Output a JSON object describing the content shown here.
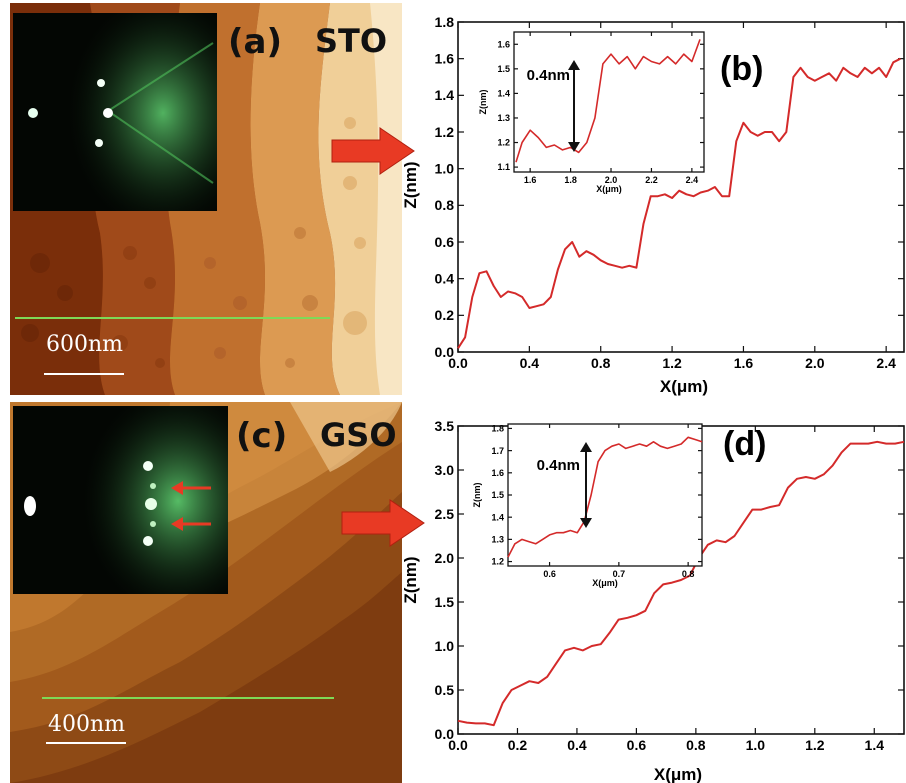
{
  "panels": {
    "a": {
      "label": "(a)",
      "material": "STO",
      "scalebar": "600nm"
    },
    "b": {
      "label": "(b)"
    },
    "c": {
      "label": "(c)",
      "material": "GSO",
      "scalebar": "400nm"
    },
    "d": {
      "label": "(d)"
    }
  },
  "colors": {
    "curve": "#d42a2a",
    "arrow": "#e83a24",
    "profile_line": "#7ed957",
    "rheed_green": "#3fb04a"
  },
  "chart_data": [
    {
      "id": "b-main",
      "type": "line",
      "xlabel": "X(μm)",
      "ylabel": "Z(nm)",
      "xlim": [
        0.0,
        2.5
      ],
      "ylim": [
        0.0,
        1.8
      ],
      "xticks": [
        "0.0",
        "0.4",
        "0.8",
        "1.2",
        "1.6",
        "2.0",
        "2.4"
      ],
      "yticks": [
        "0.0",
        "0.2",
        "0.4",
        "0.6",
        "0.8",
        "1.0",
        "1.2",
        "1.4",
        "1.6",
        "1.8"
      ],
      "series": [
        {
          "x": [
            0.0,
            0.04,
            0.08,
            0.12,
            0.16,
            0.2,
            0.24,
            0.28,
            0.32,
            0.36,
            0.4,
            0.44,
            0.48,
            0.52,
            0.56,
            0.6,
            0.64,
            0.68,
            0.72,
            0.76,
            0.8,
            0.84,
            0.88,
            0.92,
            0.96,
            1.0,
            1.04,
            1.08,
            1.12,
            1.16,
            1.2,
            1.24,
            1.28,
            1.32,
            1.36,
            1.4,
            1.44,
            1.48,
            1.52,
            1.56,
            1.6,
            1.64,
            1.68,
            1.72,
            1.76,
            1.8,
            1.84,
            1.88,
            1.92,
            1.96,
            2.0,
            2.04,
            2.08,
            2.12,
            2.16,
            2.2,
            2.24,
            2.28,
            2.32,
            2.36,
            2.4,
            2.44,
            2.48
          ],
          "y": [
            0.02,
            0.08,
            0.3,
            0.43,
            0.44,
            0.36,
            0.3,
            0.33,
            0.32,
            0.3,
            0.24,
            0.25,
            0.26,
            0.3,
            0.45,
            0.56,
            0.6,
            0.52,
            0.55,
            0.53,
            0.5,
            0.48,
            0.47,
            0.46,
            0.47,
            0.46,
            0.7,
            0.85,
            0.85,
            0.86,
            0.84,
            0.88,
            0.86,
            0.85,
            0.87,
            0.88,
            0.9,
            0.85,
            0.85,
            1.15,
            1.25,
            1.2,
            1.18,
            1.2,
            1.2,
            1.15,
            1.2,
            1.5,
            1.55,
            1.5,
            1.48,
            1.5,
            1.52,
            1.48,
            1.55,
            1.52,
            1.5,
            1.55,
            1.52,
            1.55,
            1.5,
            1.58,
            1.6
          ]
        }
      ]
    },
    {
      "id": "b-inset",
      "type": "line",
      "xlabel": "X(μm)",
      "ylabel": "Z(nm)",
      "xlim": [
        1.52,
        2.46
      ],
      "ylim": [
        1.08,
        1.65
      ],
      "xticks": [
        "1.6",
        "1.8",
        "2.0",
        "2.2",
        "2.4"
      ],
      "yticks": [
        "1.1",
        "1.2",
        "1.3",
        "1.4",
        "1.5",
        "1.6"
      ],
      "annotation": "0.4nm",
      "series": [
        {
          "x": [
            1.53,
            1.56,
            1.6,
            1.64,
            1.68,
            1.72,
            1.76,
            1.8,
            1.84,
            1.88,
            1.92,
            1.96,
            2.0,
            2.04,
            2.08,
            2.12,
            2.16,
            2.2,
            2.24,
            2.28,
            2.32,
            2.36,
            2.4,
            2.44
          ],
          "y": [
            1.12,
            1.2,
            1.25,
            1.22,
            1.18,
            1.19,
            1.17,
            1.18,
            1.16,
            1.2,
            1.3,
            1.52,
            1.56,
            1.52,
            1.55,
            1.5,
            1.55,
            1.53,
            1.52,
            1.55,
            1.52,
            1.56,
            1.53,
            1.62
          ]
        }
      ]
    },
    {
      "id": "d-main",
      "type": "line",
      "xlabel": "X(μm)",
      "ylabel": "Z(nm)",
      "xlim": [
        0.0,
        1.5
      ],
      "ylim": [
        0.0,
        3.5
      ],
      "xticks": [
        "0.0",
        "0.2",
        "0.4",
        "0.6",
        "0.8",
        "1.0",
        "1.2",
        "1.4"
      ],
      "yticks": [
        "0.0",
        "0.5",
        "1.0",
        "1.5",
        "2.0",
        "2.5",
        "3.0",
        "3.5"
      ],
      "series": [
        {
          "x": [
            0.0,
            0.03,
            0.06,
            0.09,
            0.12,
            0.15,
            0.18,
            0.21,
            0.24,
            0.27,
            0.3,
            0.33,
            0.36,
            0.39,
            0.42,
            0.45,
            0.48,
            0.51,
            0.54,
            0.57,
            0.6,
            0.63,
            0.66,
            0.69,
            0.72,
            0.75,
            0.78,
            0.81,
            0.84,
            0.87,
            0.9,
            0.93,
            0.96,
            0.99,
            1.02,
            1.05,
            1.08,
            1.11,
            1.14,
            1.17,
            1.2,
            1.23,
            1.26,
            1.29,
            1.32,
            1.35,
            1.38,
            1.41,
            1.44,
            1.47,
            1.5
          ],
          "y": [
            0.15,
            0.13,
            0.12,
            0.12,
            0.1,
            0.35,
            0.5,
            0.55,
            0.6,
            0.58,
            0.65,
            0.8,
            0.95,
            0.98,
            0.95,
            1.0,
            1.02,
            1.15,
            1.3,
            1.32,
            1.35,
            1.4,
            1.6,
            1.7,
            1.72,
            1.75,
            1.8,
            2.0,
            2.15,
            2.2,
            2.18,
            2.25,
            2.4,
            2.55,
            2.55,
            2.58,
            2.6,
            2.8,
            2.9,
            2.92,
            2.9,
            2.95,
            3.05,
            3.2,
            3.3,
            3.3,
            3.3,
            3.32,
            3.3,
            3.3,
            3.32
          ]
        }
      ]
    },
    {
      "id": "d-inset",
      "type": "line",
      "xlabel": "X(μm)",
      "ylabel": "Z(nm)",
      "xlim": [
        0.54,
        0.82
      ],
      "ylim": [
        1.18,
        1.82
      ],
      "xticks": [
        "0.6",
        "0.7",
        "0.8"
      ],
      "yticks": [
        "1.2",
        "1.3",
        "1.4",
        "1.5",
        "1.6",
        "1.7",
        "1.8"
      ],
      "annotation": "0.4nm",
      "series": [
        {
          "x": [
            0.54,
            0.55,
            0.56,
            0.57,
            0.58,
            0.59,
            0.6,
            0.61,
            0.62,
            0.63,
            0.64,
            0.65,
            0.66,
            0.67,
            0.68,
            0.69,
            0.7,
            0.71,
            0.72,
            0.73,
            0.74,
            0.75,
            0.76,
            0.77,
            0.78,
            0.79,
            0.8,
            0.81,
            0.82
          ],
          "y": [
            1.22,
            1.28,
            1.3,
            1.29,
            1.28,
            1.3,
            1.32,
            1.33,
            1.33,
            1.34,
            1.33,
            1.38,
            1.5,
            1.65,
            1.7,
            1.72,
            1.73,
            1.71,
            1.72,
            1.73,
            1.72,
            1.74,
            1.72,
            1.71,
            1.72,
            1.73,
            1.76,
            1.75,
            1.74
          ]
        }
      ]
    }
  ]
}
